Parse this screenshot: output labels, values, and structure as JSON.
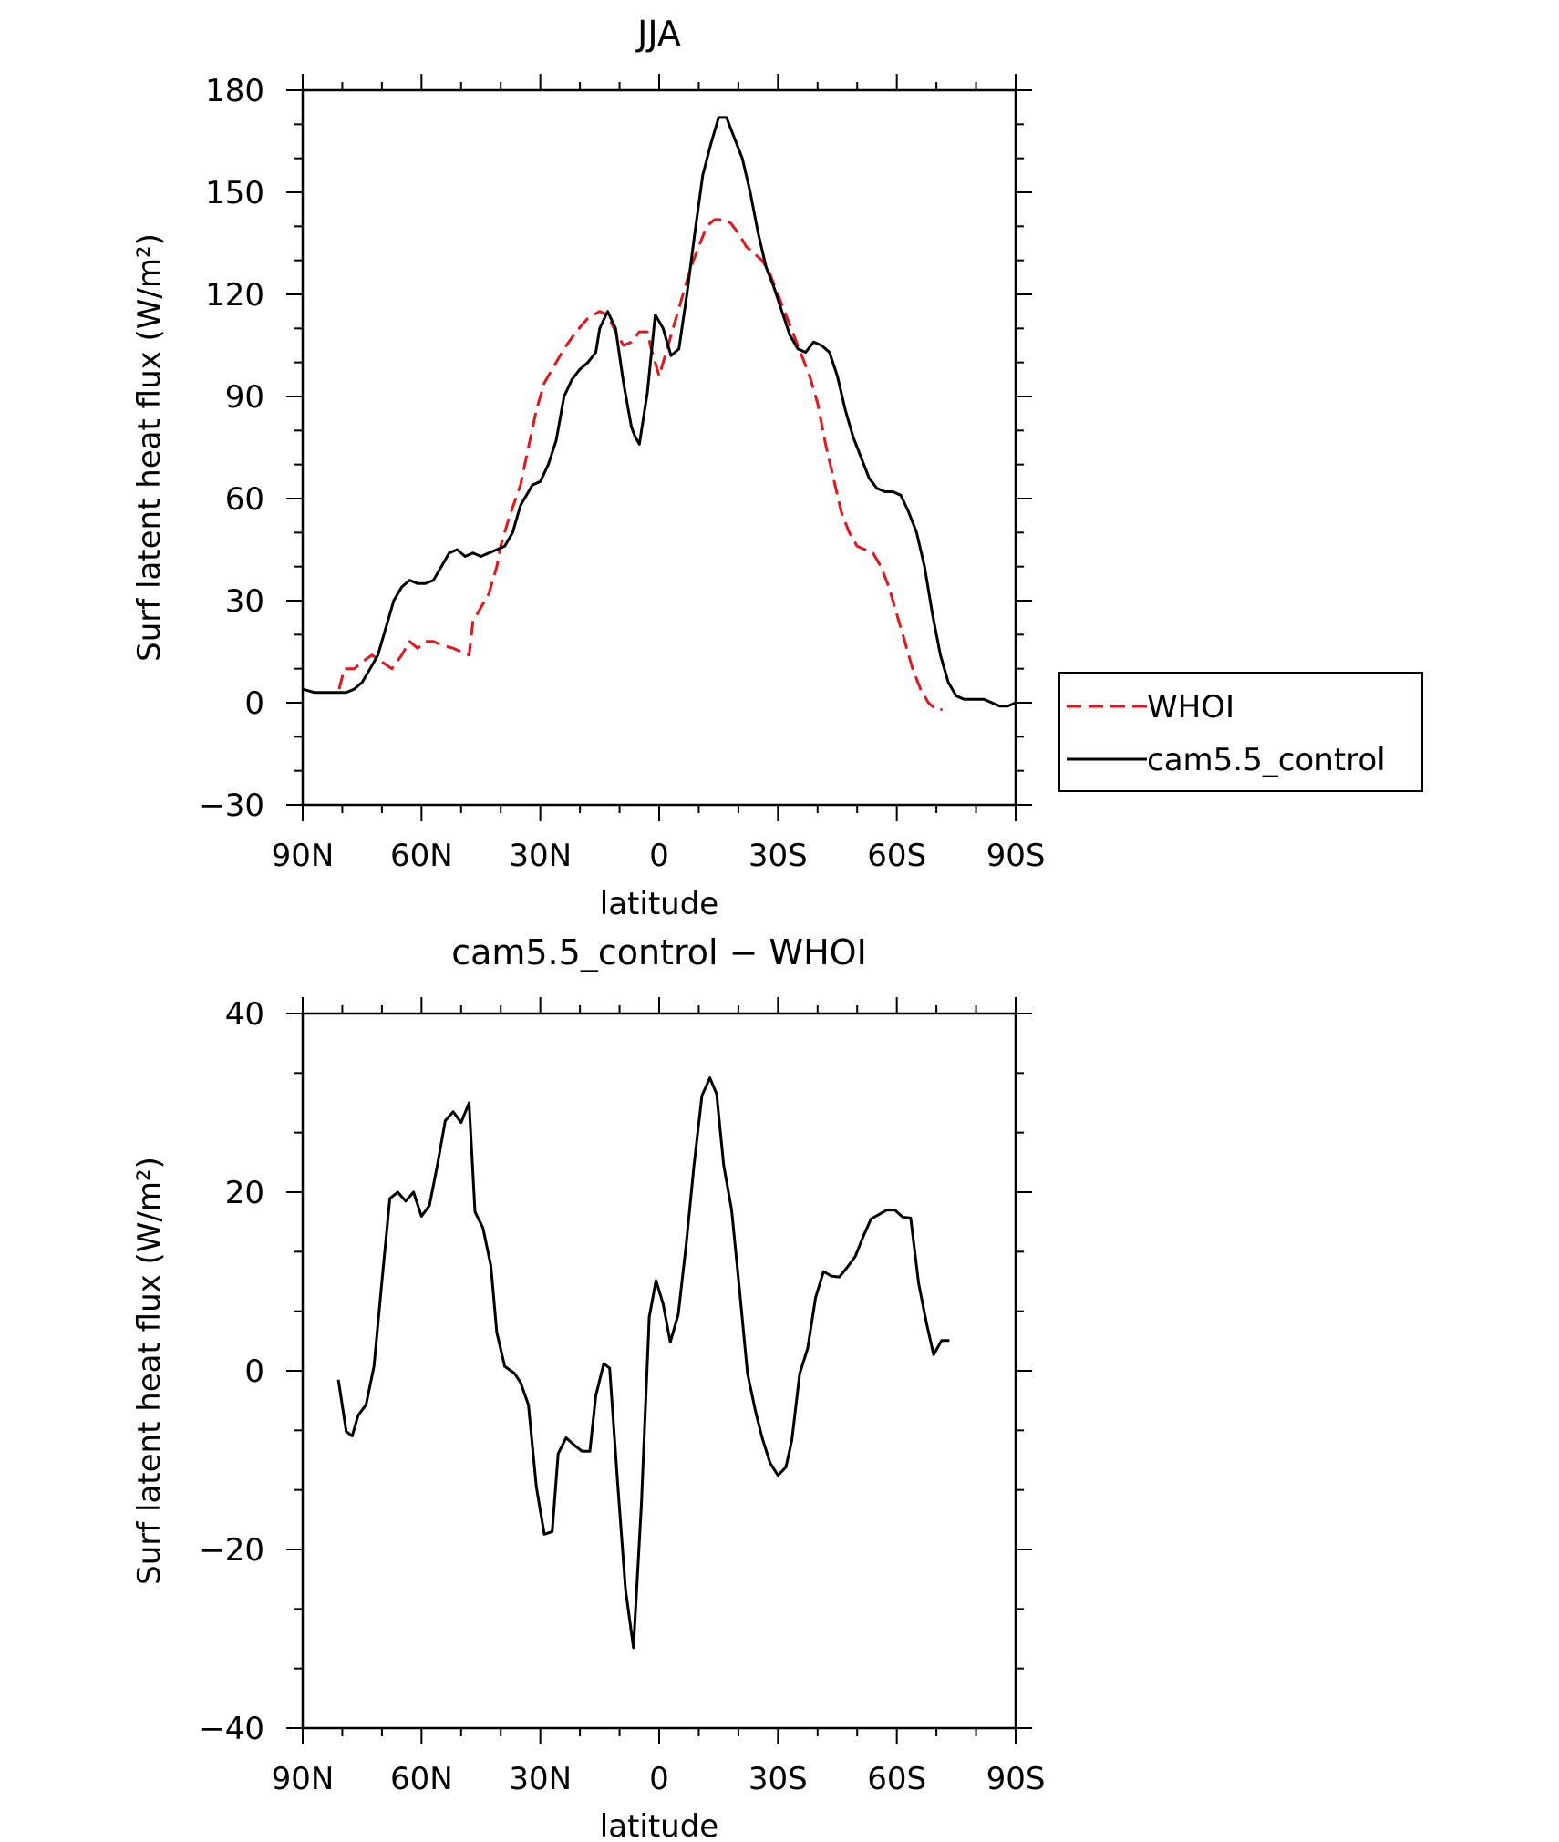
{
  "chart_data": [
    {
      "type": "line",
      "title": "JJA",
      "xlabel": "latitude",
      "ylabel": "Surf latent heat flux (W/m²)",
      "xlim": [
        -90,
        90
      ],
      "ylim": [
        -30,
        180
      ],
      "x_ticks": [
        {
          "value": -90,
          "label": "90N"
        },
        {
          "value": -60,
          "label": "60N"
        },
        {
          "value": -30,
          "label": "30N"
        },
        {
          "value": 0,
          "label": "0"
        },
        {
          "value": 30,
          "label": "30S"
        },
        {
          "value": 60,
          "label": "60S"
        },
        {
          "value": 90,
          "label": "90S"
        }
      ],
      "y_ticks": [
        {
          "value": -30,
          "label": "−30"
        },
        {
          "value": 0,
          "label": "0"
        },
        {
          "value": 30,
          "label": "30"
        },
        {
          "value": 60,
          "label": "60"
        },
        {
          "value": 90,
          "label": "90"
        },
        {
          "value": 120,
          "label": "120"
        },
        {
          "value": 150,
          "label": "150"
        },
        {
          "value": 180,
          "label": "180"
        }
      ],
      "legend": "right",
      "series": [
        {
          "name": "WHOI",
          "color": "#e8141a",
          "dash": "dashed",
          "points": [
            [
              -80.8,
              4
            ],
            [
              -79.5,
              10
            ],
            [
              -77,
              10
            ],
            [
              -75,
              12
            ],
            [
              -72.5,
              14
            ],
            [
              -70,
              12
            ],
            [
              -67.5,
              10
            ],
            [
              -65,
              14
            ],
            [
              -63,
              18
            ],
            [
              -61,
              16
            ],
            [
              -59,
              18
            ],
            [
              -57,
              18
            ],
            [
              -55,
              17
            ],
            [
              -52,
              16
            ],
            [
              -50,
              15
            ],
            [
              -48,
              14
            ],
            [
              -47,
              24
            ],
            [
              -45,
              28
            ],
            [
              -43,
              32
            ],
            [
              -41,
              40
            ],
            [
              -40,
              46
            ],
            [
              -38,
              54
            ],
            [
              -35,
              64
            ],
            [
              -33,
              75
            ],
            [
              -31,
              86
            ],
            [
              -29,
              94
            ],
            [
              -27,
              98
            ],
            [
              -24,
              104
            ],
            [
              -21,
              109
            ],
            [
              -18,
              113
            ],
            [
              -15,
              115
            ],
            [
              -13,
              114
            ],
            [
              -11,
              109
            ],
            [
              -9,
              105
            ],
            [
              -7,
              106
            ],
            [
              -5,
              109
            ],
            [
              -3,
              109
            ],
            [
              -2,
              104
            ],
            [
              0,
              96
            ],
            [
              2,
              104
            ],
            [
              4,
              112
            ],
            [
              6,
              120
            ],
            [
              8,
              128
            ],
            [
              10,
              134
            ],
            [
              12,
              140
            ],
            [
              14,
              142
            ],
            [
              16,
              142
            ],
            [
              18,
              141
            ],
            [
              20,
              138
            ],
            [
              22,
              134
            ],
            [
              24,
              132
            ],
            [
              26,
              130
            ],
            [
              28,
              126
            ],
            [
              30,
              120
            ],
            [
              32,
              114
            ],
            [
              34,
              108
            ],
            [
              36,
              102
            ],
            [
              38,
              96
            ],
            [
              40,
              88
            ],
            [
              42,
              76
            ],
            [
              44,
              66
            ],
            [
              46,
              56
            ],
            [
              48,
              50
            ],
            [
              50,
              46
            ],
            [
              52,
              45
            ],
            [
              54,
              44
            ],
            [
              56,
              40
            ],
            [
              58,
              34
            ],
            [
              60,
              26
            ],
            [
              62,
              18
            ],
            [
              64,
              10
            ],
            [
              66,
              4
            ],
            [
              68,
              0
            ],
            [
              70,
              -2
            ],
            [
              71.5,
              -2
            ]
          ]
        },
        {
          "name": "cam5.5_control",
          "color": "#000000",
          "dash": "solid",
          "points": [
            [
              -90,
              4
            ],
            [
              -87,
              3
            ],
            [
              -85,
              3
            ],
            [
              -82,
              3
            ],
            [
              -79,
              3
            ],
            [
              -77,
              4
            ],
            [
              -75,
              6
            ],
            [
              -73,
              10
            ],
            [
              -71,
              14
            ],
            [
              -69,
              22
            ],
            [
              -67,
              30
            ],
            [
              -65,
              34
            ],
            [
              -63,
              36
            ],
            [
              -61,
              35
            ],
            [
              -59,
              35
            ],
            [
              -57,
              36
            ],
            [
              -55,
              40
            ],
            [
              -53,
              44
            ],
            [
              -51,
              45
            ],
            [
              -49,
              43
            ],
            [
              -47,
              44
            ],
            [
              -45,
              43
            ],
            [
              -43,
              44
            ],
            [
              -41,
              45
            ],
            [
              -39,
              46
            ],
            [
              -37,
              50
            ],
            [
              -35,
              58
            ],
            [
              -32,
              64
            ],
            [
              -30,
              65
            ],
            [
              -28,
              70
            ],
            [
              -26,
              77
            ],
            [
              -24,
              90
            ],
            [
              -22,
              95
            ],
            [
              -20,
              98
            ],
            [
              -18,
              100
            ],
            [
              -16,
              103
            ],
            [
              -15,
              110
            ],
            [
              -13,
              115
            ],
            [
              -11,
              110
            ],
            [
              -9,
              94
            ],
            [
              -7,
              81
            ],
            [
              -6,
              78
            ],
            [
              -5,
              76
            ],
            [
              -3,
              91
            ],
            [
              -1,
              114
            ],
            [
              1,
              110
            ],
            [
              3,
              102
            ],
            [
              5,
              104
            ],
            [
              7,
              120
            ],
            [
              9,
              138
            ],
            [
              11,
              155
            ],
            [
              13,
              164
            ],
            [
              15,
              172
            ],
            [
              17,
              172
            ],
            [
              19,
              166
            ],
            [
              21,
              160
            ],
            [
              23,
              150
            ],
            [
              25,
              138
            ],
            [
              27,
              128
            ],
            [
              29,
              122
            ],
            [
              31,
              115
            ],
            [
              33,
              108
            ],
            [
              35,
              104
            ],
            [
              37,
              103
            ],
            [
              39,
              106
            ],
            [
              41,
              105
            ],
            [
              43,
              103
            ],
            [
              45,
              96
            ],
            [
              47,
              86
            ],
            [
              49,
              78
            ],
            [
              51,
              72
            ],
            [
              53,
              66
            ],
            [
              55,
              63
            ],
            [
              57,
              62
            ],
            [
              59,
              62
            ],
            [
              61,
              61
            ],
            [
              63,
              56
            ],
            [
              65,
              50
            ],
            [
              67,
              40
            ],
            [
              69,
              26
            ],
            [
              71,
              14
            ],
            [
              73,
              6
            ],
            [
              75,
              2
            ],
            [
              77,
              1
            ],
            [
              80,
              1
            ],
            [
              82,
              1
            ],
            [
              84,
              0
            ],
            [
              86,
              -1
            ],
            [
              88,
              -1
            ],
            [
              90,
              0
            ],
            [
              92,
              0
            ],
            [
              94,
              0
            ],
            [
              96,
              0
            ]
          ]
        }
      ]
    },
    {
      "type": "line",
      "title": "cam5.5_control − WHOI",
      "xlabel": "latitude",
      "ylabel": "Surf latent heat flux (W/m²)",
      "xlim": [
        -90,
        90
      ],
      "ylim": [
        -40,
        40
      ],
      "x_ticks": [
        {
          "value": -90,
          "label": "90N"
        },
        {
          "value": -60,
          "label": "60N"
        },
        {
          "value": -30,
          "label": "30N"
        },
        {
          "value": 0,
          "label": "0"
        },
        {
          "value": 30,
          "label": "30S"
        },
        {
          "value": 60,
          "label": "60S"
        },
        {
          "value": 90,
          "label": "90S"
        }
      ],
      "y_ticks": [
        {
          "value": -40,
          "label": "−40"
        },
        {
          "value": -20,
          "label": "−20"
        },
        {
          "value": 0,
          "label": "0"
        },
        {
          "value": 20,
          "label": "20"
        },
        {
          "value": 40,
          "label": "40"
        }
      ],
      "series": [
        {
          "color": "#000000",
          "dash": "solid",
          "points": [
            [
              -81,
              -1
            ],
            [
              -79,
              -6.8
            ],
            [
              -77.5,
              -7.3
            ],
            [
              -76,
              -5
            ],
            [
              -74,
              -3.8
            ],
            [
              -72,
              0.5
            ],
            [
              -70,
              10
            ],
            [
              -68,
              19.3
            ],
            [
              -66,
              20
            ],
            [
              -64,
              19
            ],
            [
              -62,
              20
            ],
            [
              -60,
              17.3
            ],
            [
              -58,
              18.5
            ],
            [
              -56,
              23
            ],
            [
              -54,
              28
            ],
            [
              -52,
              29
            ],
            [
              -50,
              27.8
            ],
            [
              -48,
              30
            ],
            [
              -46.5,
              17.8
            ],
            [
              -44.5,
              16
            ],
            [
              -42.5,
              11.8
            ],
            [
              -41,
              4.3
            ],
            [
              -39,
              0.5
            ],
            [
              -36.5,
              -0.3
            ],
            [
              -35,
              -1.3
            ],
            [
              -33,
              -3.8
            ],
            [
              -31,
              -13
            ],
            [
              -29,
              -18.3
            ],
            [
              -27,
              -18
            ],
            [
              -25.5,
              -9.3
            ],
            [
              -23.5,
              -7.5
            ],
            [
              -21.5,
              -8.3
            ],
            [
              -19.5,
              -9
            ],
            [
              -17.5,
              -9
            ],
            [
              -16,
              -2.8
            ],
            [
              -14,
              0.8
            ],
            [
              -12.5,
              0.3
            ],
            [
              -10.5,
              -12.5
            ],
            [
              -8.5,
              -24.5
            ],
            [
              -6.5,
              -31
            ],
            [
              -4.5,
              -15
            ],
            [
              -2.5,
              6
            ],
            [
              -0.8,
              10.1
            ],
            [
              1,
              7.5
            ],
            [
              2.8,
              3.2
            ],
            [
              4.8,
              6.3
            ],
            [
              6.8,
              14
            ],
            [
              8.8,
              23
            ],
            [
              10.8,
              30.8
            ],
            [
              12.8,
              32.8
            ],
            [
              14.5,
              31
            ],
            [
              16.3,
              23
            ],
            [
              18.3,
              18
            ],
            [
              20.3,
              9
            ],
            [
              22.3,
              -0.3
            ],
            [
              24.3,
              -4.5
            ],
            [
              26,
              -7.5
            ],
            [
              28,
              -10.3
            ],
            [
              30,
              -11.7
            ],
            [
              32,
              -10.8
            ],
            [
              33.5,
              -7.8
            ],
            [
              35.5,
              -0.3
            ],
            [
              37.5,
              2.5
            ],
            [
              39.5,
              8.2
            ],
            [
              41.5,
              11.1
            ],
            [
              43.5,
              10.6
            ],
            [
              45.5,
              10.5
            ],
            [
              47.5,
              11.6
            ],
            [
              49.5,
              12.8
            ],
            [
              51.5,
              15
            ],
            [
              53.5,
              17
            ],
            [
              55.5,
              17.5
            ],
            [
              57.5,
              18
            ],
            [
              59.5,
              18
            ],
            [
              61.5,
              17.2
            ],
            [
              63.5,
              17.1
            ],
            [
              65.5,
              9.8
            ],
            [
              67.5,
              5.3
            ],
            [
              69.3,
              1.8
            ],
            [
              71.3,
              3.4
            ],
            [
              73.3,
              3.4
            ]
          ]
        }
      ]
    }
  ]
}
